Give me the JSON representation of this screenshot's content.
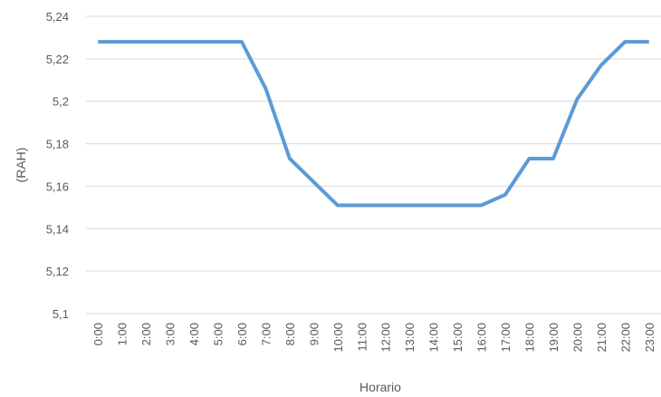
{
  "chart_data": {
    "type": "line",
    "xlabel": "Horario",
    "ylabel": "(RAH)",
    "ylim": [
      5.1,
      5.24
    ],
    "yticks": [
      "5,1",
      "5,12",
      "5,14",
      "5,16",
      "5,18",
      "5,2",
      "5,22",
      "5,24"
    ],
    "categories": [
      "0:00",
      "1:00",
      "2:00",
      "3:00",
      "4:00",
      "5:00",
      "6:00",
      "7:00",
      "8:00",
      "9:00",
      "10:00",
      "11:00",
      "12:00",
      "13:00",
      "14:00",
      "15:00",
      "16:00",
      "17:00",
      "18:00",
      "19:00",
      "20:00",
      "21:00",
      "22:00",
      "23:00"
    ],
    "series": [
      {
        "color": "#5b9bd5",
        "values": [
          5.228,
          5.228,
          5.228,
          5.228,
          5.228,
          5.228,
          5.228,
          5.206,
          5.173,
          5.162,
          5.151,
          5.151,
          5.151,
          5.151,
          5.151,
          5.151,
          5.151,
          5.156,
          5.173,
          5.173,
          5.201,
          5.217,
          5.228,
          5.228
        ]
      }
    ],
    "grid": true
  }
}
